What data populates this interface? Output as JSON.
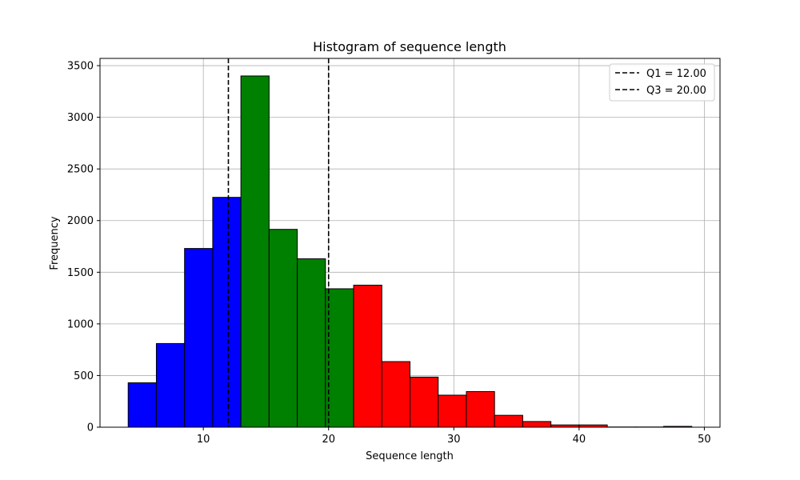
{
  "chart_data": {
    "type": "bar",
    "title": "Histogram of sequence length",
    "xlabel": "Sequence length",
    "ylabel": "Frequency",
    "xlim": [
      1.75,
      51.25
    ],
    "ylim": [
      0,
      3570
    ],
    "grid": true,
    "legend_position": "top-right",
    "x_ticks": [
      10,
      20,
      30,
      40,
      50
    ],
    "y_ticks": [
      0,
      500,
      1000,
      1500,
      2000,
      2500,
      3000,
      3500
    ],
    "bins": [
      {
        "start": 4.0,
        "end": 6.25,
        "value": 430,
        "color": "#0000ff"
      },
      {
        "start": 6.25,
        "end": 8.5,
        "value": 810,
        "color": "#0000ff"
      },
      {
        "start": 8.5,
        "end": 10.75,
        "value": 1730,
        "color": "#0000ff"
      },
      {
        "start": 10.75,
        "end": 13.0,
        "value": 2225,
        "color": "#0000ff"
      },
      {
        "start": 13.0,
        "end": 15.25,
        "value": 3400,
        "color": "#008000"
      },
      {
        "start": 15.25,
        "end": 17.5,
        "value": 1915,
        "color": "#008000"
      },
      {
        "start": 17.5,
        "end": 19.75,
        "value": 1630,
        "color": "#008000"
      },
      {
        "start": 19.75,
        "end": 22.0,
        "value": 1340,
        "color": "#008000"
      },
      {
        "start": 22.0,
        "end": 24.25,
        "value": 1375,
        "color": "#ff0000"
      },
      {
        "start": 24.25,
        "end": 26.5,
        "value": 635,
        "color": "#ff0000"
      },
      {
        "start": 26.5,
        "end": 28.75,
        "value": 485,
        "color": "#ff0000"
      },
      {
        "start": 28.75,
        "end": 31.0,
        "value": 310,
        "color": "#ff0000"
      },
      {
        "start": 31.0,
        "end": 33.25,
        "value": 345,
        "color": "#ff0000"
      },
      {
        "start": 33.25,
        "end": 35.5,
        "value": 115,
        "color": "#ff0000"
      },
      {
        "start": 35.5,
        "end": 37.75,
        "value": 55,
        "color": "#ff0000"
      },
      {
        "start": 37.75,
        "end": 40.0,
        "value": 22,
        "color": "#ff0000"
      },
      {
        "start": 40.0,
        "end": 42.25,
        "value": 22,
        "color": "#ff0000"
      },
      {
        "start": 42.25,
        "end": 44.5,
        "value": 2,
        "color": "#ff0000"
      },
      {
        "start": 44.5,
        "end": 46.75,
        "value": 2,
        "color": "#ff0000"
      },
      {
        "start": 46.75,
        "end": 49.0,
        "value": 8,
        "color": "#ff0000"
      }
    ],
    "vlines": [
      {
        "x": 12.0,
        "label": "Q1 = 12.00",
        "color": "#000000"
      },
      {
        "x": 20.0,
        "label": "Q3 = 20.00",
        "color": "#000000"
      }
    ]
  }
}
